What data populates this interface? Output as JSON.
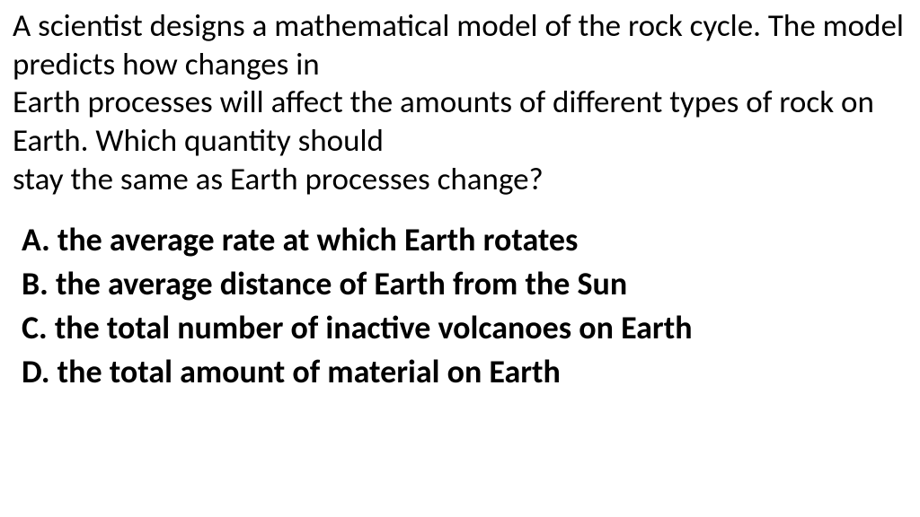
{
  "question": {
    "lines": [
      "A scientist designs a mathematical model of the rock cycle. The model predicts how changes in",
      "Earth processes will affect the amounts of different types of rock on Earth. Which quantity should",
      "stay the same as Earth processes change?"
    ],
    "font_size_pt": 26,
    "font_weight": 400,
    "color": "#000000"
  },
  "options": [
    {
      "label": "A.",
      "text": "the average rate at which Earth rotates"
    },
    {
      "label": "B.",
      "text": "the average distance of Earth from the Sun"
    },
    {
      "label": "C.",
      "text": "the total number of inactive volcanoes on Earth"
    },
    {
      "label": "D.",
      "text": "the total amount of material on Earth"
    }
  ],
  "options_style": {
    "font_size_pt": 27,
    "font_weight": 700,
    "color": "#000000"
  },
  "background_color": "#ffffff"
}
